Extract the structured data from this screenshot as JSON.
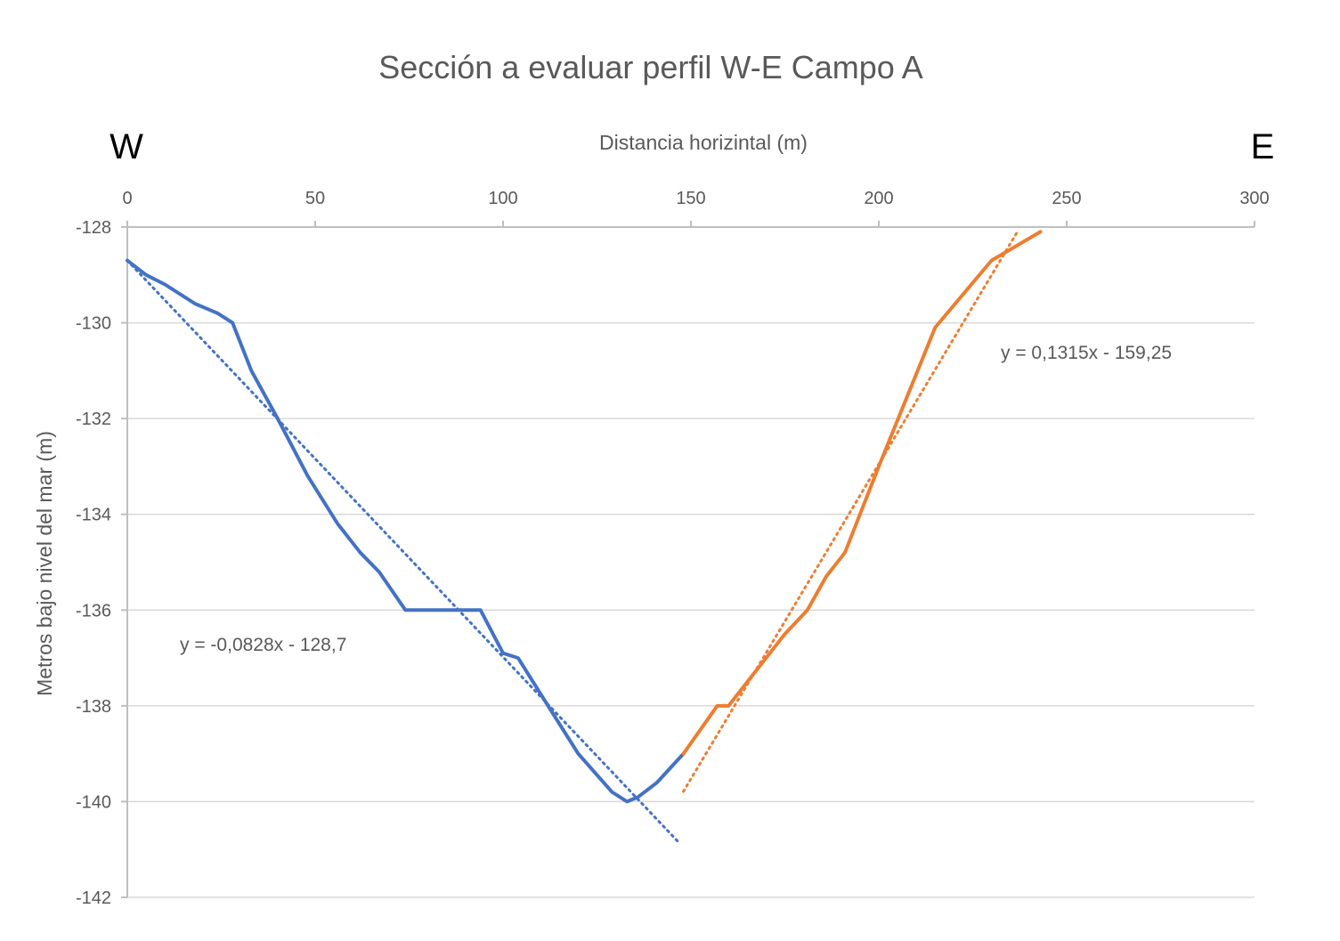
{
  "chart_data": {
    "type": "line",
    "title": "Sección a evaluar perfil W-E Campo A",
    "xlabel": "Distancia horizintal (m)",
    "ylabel": "Metros bajo nivel del mar (m)",
    "xlim": [
      0,
      300
    ],
    "ylim": [
      -142,
      -128
    ],
    "x_ticks": [
      0,
      50,
      100,
      150,
      200,
      250,
      300
    ],
    "y_ticks": [
      -128,
      -130,
      -132,
      -134,
      -136,
      -138,
      -140,
      -142
    ],
    "x_axis_position": "top",
    "grid": "horizontal",
    "direction_labels": {
      "west": "W",
      "east": "E"
    },
    "colors": {
      "west_series": "#4472C4",
      "east_series": "#ED7D31",
      "grid": "#D9D9D9",
      "axis": "#BFBFBF"
    },
    "series": [
      {
        "x": [
          0,
          5,
          10,
          18,
          24,
          28,
          33,
          40,
          48,
          56,
          62,
          67,
          74,
          82,
          88,
          94,
          100,
          104,
          112,
          120,
          129,
          133,
          136,
          141,
          148
        ],
        "y": [
          -128.7,
          -129.0,
          -129.2,
          -129.6,
          -129.8,
          -130.0,
          -131.0,
          -132.0,
          -133.2,
          -134.2,
          -134.8,
          -135.2,
          -136.0,
          -136.0,
          -136.0,
          -136.0,
          -136.9,
          -137.0,
          -138.0,
          -139.0,
          -139.8,
          -140.0,
          -139.9,
          -139.6,
          -139.0
        ],
        "color": "#4472C4"
      },
      {
        "x": [
          148,
          157,
          160,
          165,
          175,
          181,
          186,
          191,
          200,
          215,
          230,
          243
        ],
        "y": [
          -139.0,
          -138.0,
          -138.0,
          -137.5,
          -136.5,
          -136.0,
          -135.3,
          -134.8,
          -133.0,
          -130.1,
          -128.7,
          -128.1
        ],
        "color": "#ED7D31"
      }
    ],
    "trendlines": [
      {
        "equation": "y = -0,0828x - 128,7",
        "slope": -0.0828,
        "intercept": -128.7,
        "x_range": [
          0,
          147
        ],
        "color": "#4472C4",
        "style": "dotted"
      },
      {
        "equation": "y = 0,1315x - 159,25",
        "slope": 0.1315,
        "intercept": -159.25,
        "x_range": [
          148,
          237
        ],
        "color": "#ED7D31",
        "style": "dotted"
      }
    ]
  }
}
